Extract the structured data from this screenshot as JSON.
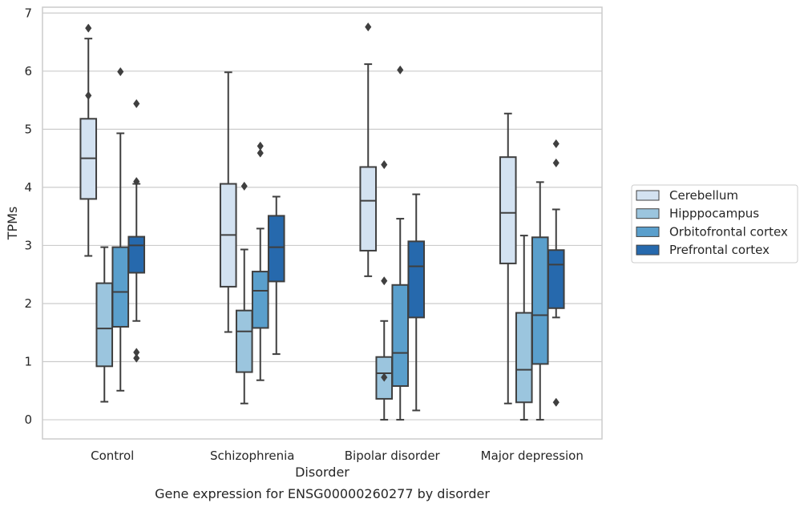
{
  "chart_data": {
    "type": "boxplot",
    "title": "",
    "caption": "Gene expression for ENSG00000260277 by disorder",
    "xlabel": "Disorder",
    "ylabel": "TPMs",
    "categories": [
      "Control",
      "Schizophrenia",
      "Bipolar disorder",
      "Major depression"
    ],
    "ylim": [
      -0.33,
      7.1
    ],
    "yticks": [
      0,
      1,
      2,
      3,
      4,
      5,
      6,
      7
    ],
    "grid": "horizontal",
    "legend_position": "right",
    "series": [
      {
        "name": "Cerebellum",
        "color": "#d3e2f1",
        "boxes": [
          {
            "whislo": 2.82,
            "q1": 3.8,
            "med": 4.5,
            "q3": 5.18,
            "whishi": 6.56,
            "fliers": [
              6.74,
              5.58
            ]
          },
          {
            "whislo": 1.51,
            "q1": 2.29,
            "med": 3.18,
            "q3": 4.06,
            "whishi": 5.98,
            "fliers": []
          },
          {
            "whislo": 2.47,
            "q1": 2.91,
            "med": 3.77,
            "q3": 4.35,
            "whishi": 6.12,
            "fliers": [
              6.76
            ]
          },
          {
            "whislo": 0.28,
            "q1": 2.69,
            "med": 3.56,
            "q3": 4.52,
            "whishi": 5.27,
            "fliers": []
          }
        ]
      },
      {
        "name": "Hipppocampus",
        "color": "#9bc5de",
        "boxes": [
          {
            "whislo": 0.31,
            "q1": 0.92,
            "med": 1.57,
            "q3": 2.35,
            "whishi": 2.97,
            "fliers": []
          },
          {
            "whislo": 0.28,
            "q1": 0.82,
            "med": 1.52,
            "q3": 1.88,
            "whishi": 2.93,
            "fliers": [
              4.02
            ]
          },
          {
            "whislo": 0.0,
            "q1": 0.36,
            "med": 0.8,
            "q3": 1.08,
            "whishi": 1.7,
            "fliers": [
              0.73,
              4.39,
              2.39
            ]
          },
          {
            "whislo": 0.0,
            "q1": 0.3,
            "med": 0.86,
            "q3": 1.84,
            "whishi": 3.17,
            "fliers": []
          }
        ]
      },
      {
        "name": "Orbitofrontal cortex",
        "color": "#5a9fcc",
        "boxes": [
          {
            "whislo": 0.5,
            "q1": 1.6,
            "med": 2.2,
            "q3": 2.97,
            "whishi": 4.93,
            "fliers": [
              5.99
            ]
          },
          {
            "whislo": 0.68,
            "q1": 1.58,
            "med": 2.22,
            "q3": 2.55,
            "whishi": 3.29,
            "fliers": [
              4.71,
              4.59
            ]
          },
          {
            "whislo": 0.0,
            "q1": 0.58,
            "med": 1.15,
            "q3": 2.32,
            "whishi": 3.46,
            "fliers": [
              6.02
            ]
          },
          {
            "whislo": 0.0,
            "q1": 0.96,
            "med": 1.8,
            "q3": 3.14,
            "whishi": 4.09,
            "fliers": []
          }
        ]
      },
      {
        "name": "Prefrontal cortex",
        "color": "#2669ad",
        "boxes": [
          {
            "whislo": 1.7,
            "q1": 2.53,
            "med": 3.0,
            "q3": 3.15,
            "whishi": 4.06,
            "fliers": [
              5.44,
              4.1,
              1.16,
              1.06
            ]
          },
          {
            "whislo": 1.13,
            "q1": 2.38,
            "med": 2.97,
            "q3": 3.51,
            "whishi": 3.84,
            "fliers": []
          },
          {
            "whislo": 0.16,
            "q1": 1.76,
            "med": 2.64,
            "q3": 3.07,
            "whishi": 3.88,
            "fliers": []
          },
          {
            "whislo": 1.76,
            "q1": 1.92,
            "med": 2.67,
            "q3": 2.92,
            "whishi": 3.62,
            "fliers": [
              4.75,
              4.42,
              0.3
            ]
          }
        ]
      }
    ]
  }
}
